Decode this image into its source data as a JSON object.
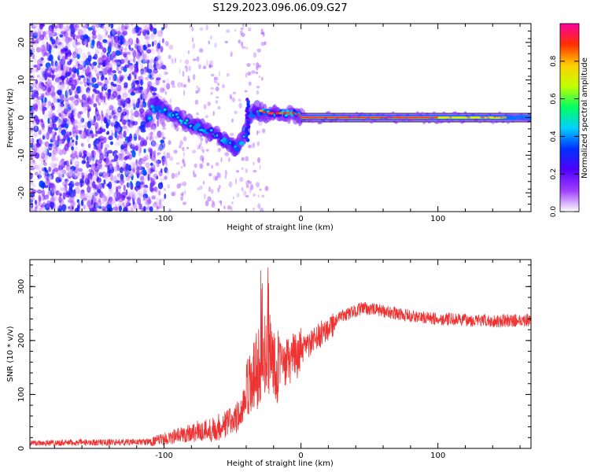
{
  "title": "S129.2023.096.06.09.G27",
  "chart_data": [
    {
      "type": "heatmap",
      "name": "spectrogram",
      "xlabel": "Height of straight line (km)",
      "ylabel": "Frequency (Hz)",
      "xlim": [
        -198,
        168
      ],
      "ylim": [
        -25,
        25
      ],
      "xticks": [
        -100,
        0,
        100
      ],
      "yticks": [
        -20,
        -10,
        0,
        10,
        20
      ],
      "colorbar": {
        "label": "Normalized spectral amplitude",
        "range": [
          0,
          1
        ],
        "ticks": [
          "0.0",
          "0.2",
          "0.4",
          "0.6",
          "0.8"
        ],
        "tick_values": [
          0,
          0.2,
          0.4,
          0.6,
          0.8
        ],
        "colors": [
          "#ffffff",
          "#a040ff",
          "#5000ff",
          "#0030ff",
          "#00d0ff",
          "#00ff60",
          "#c0ff00",
          "#ffd000",
          "#ff3000",
          "#ff00a0"
        ]
      },
      "features": {
        "carrier_frequency_hz": 0,
        "carrier_start_km": 0,
        "noise_region_km": [
          -198,
          -110
        ],
        "doppler_drift": [
          [
            -110,
            3
          ],
          [
            -100,
            2
          ],
          [
            -90,
            0
          ],
          [
            -80,
            -2
          ],
          [
            -70,
            -3
          ],
          [
            -60,
            -5
          ],
          [
            -52,
            -7
          ],
          [
            -47,
            -8
          ],
          [
            -42,
            -6
          ],
          [
            -38,
            0
          ],
          [
            -33,
            2
          ],
          [
            -25,
            1
          ],
          [
            -15,
            1
          ],
          [
            -5,
            1
          ],
          [
            0,
            0
          ]
        ]
      }
    },
    {
      "type": "line",
      "name": "snr",
      "xlabel": "Height of straight line (km)",
      "ylabel": "SNR (10 * v/v)",
      "xlim": [
        -198,
        168
      ],
      "ylim": [
        0,
        350
      ],
      "xticks": [
        -100,
        0,
        100
      ],
      "yticks": [
        0,
        100,
        200,
        300
      ],
      "color": "#ee3333",
      "profile": [
        [
          -198,
          10
        ],
        [
          -110,
          12
        ],
        [
          -95,
          20
        ],
        [
          -80,
          30
        ],
        [
          -65,
          35
        ],
        [
          -55,
          45
        ],
        [
          -45,
          60
        ],
        [
          -35,
          120
        ],
        [
          -30,
          160
        ],
        [
          -25,
          180
        ],
        [
          -20,
          165
        ],
        [
          -15,
          150
        ],
        [
          -10,
          160
        ],
        [
          -5,
          170
        ],
        [
          0,
          180
        ],
        [
          10,
          200
        ],
        [
          20,
          225
        ],
        [
          30,
          245
        ],
        [
          45,
          260
        ],
        [
          60,
          255
        ],
        [
          80,
          245
        ],
        [
          100,
          240
        ],
        [
          120,
          238
        ],
        [
          140,
          236
        ],
        [
          168,
          238
        ]
      ]
    }
  ]
}
